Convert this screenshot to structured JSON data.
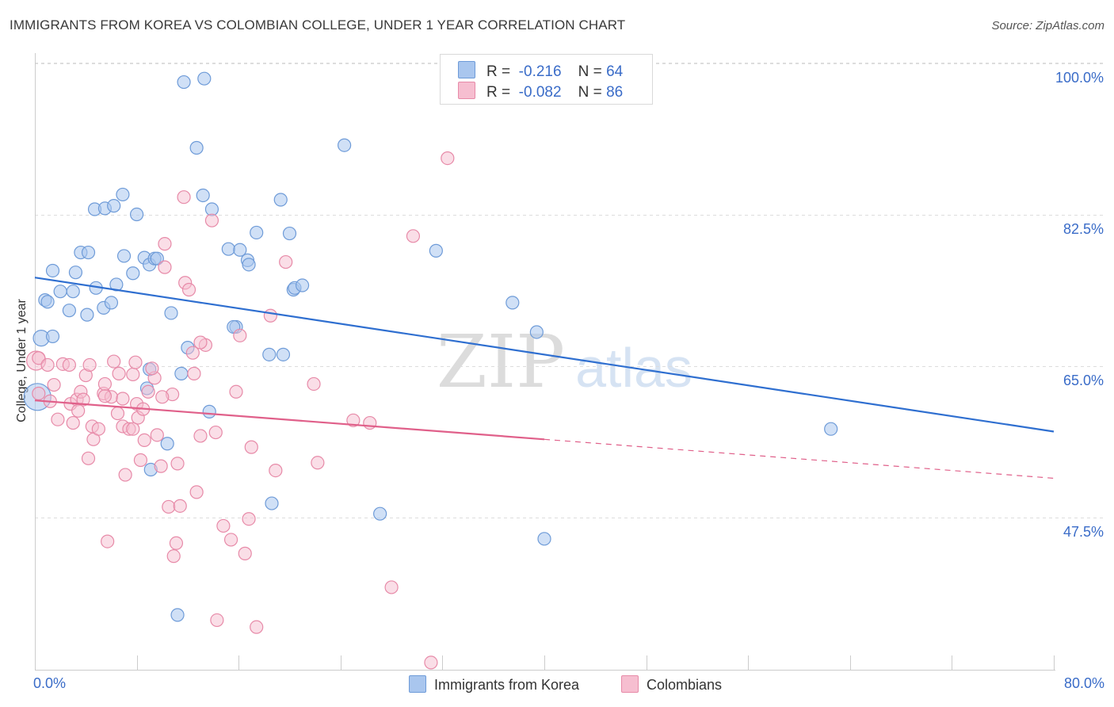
{
  "title": "IMMIGRANTS FROM KOREA VS COLOMBIAN COLLEGE, UNDER 1 YEAR CORRELATION CHART",
  "source": "Source: ZipAtlas.com",
  "watermark": {
    "zip": "ZIP",
    "atlas": "atlas"
  },
  "legend": {
    "rows": [
      {
        "r_label": "R =",
        "r_value": "-0.216",
        "n_label": "N =",
        "n_value": "64"
      },
      {
        "r_label": "R =",
        "r_value": "-0.082",
        "n_label": "N =",
        "n_value": "86"
      }
    ]
  },
  "colors": {
    "korea_fill": "#a9c6ee",
    "korea_stroke": "#6e9bd8",
    "korea_line": "#2f6fd0",
    "colombia_fill": "#f6bed0",
    "colombia_stroke": "#e78aa8",
    "colombia_line": "#e0608a",
    "axis_text": "#3a6cc8",
    "grid": "#dddddd"
  },
  "chart_data": {
    "type": "scatter",
    "title": "IMMIGRANTS FROM KOREA VS COLOMBIAN COLLEGE, UNDER 1 YEAR CORRELATION CHART",
    "xlabel": "",
    "ylabel": "College, Under 1 year",
    "xlim": [
      0,
      80
    ],
    "ylim": [
      32,
      102
    ],
    "x_tick_labels": [
      "0.0%",
      "80.0%"
    ],
    "y_ticks": [
      47.5,
      65.0,
      82.5,
      100.0
    ],
    "y_tick_labels": [
      "47.5%",
      "65.0%",
      "82.5%",
      "100.0%"
    ],
    "grid": true,
    "legend_position": "top-center",
    "series": [
      {
        "name": "Immigrants from Korea",
        "points": [
          [
            0.2,
            63.0
          ],
          [
            0.5,
            69.8
          ],
          [
            0.8,
            74.2
          ],
          [
            1.0,
            74.0
          ],
          [
            1.4,
            70.0
          ],
          [
            1.4,
            77.6
          ],
          [
            2.0,
            75.2
          ],
          [
            2.7,
            73.0
          ],
          [
            3.0,
            75.2
          ],
          [
            3.2,
            77.4
          ],
          [
            3.6,
            79.7
          ],
          [
            4.2,
            79.7
          ],
          [
            4.1,
            72.5
          ],
          [
            4.8,
            75.6
          ],
          [
            4.7,
            84.7
          ],
          [
            5.5,
            84.8
          ],
          [
            6.2,
            85.1
          ],
          [
            5.4,
            73.3
          ],
          [
            6.0,
            73.9
          ],
          [
            6.4,
            76.0
          ],
          [
            7.0,
            79.3
          ],
          [
            6.9,
            86.4
          ],
          [
            7.7,
            77.3
          ],
          [
            8.0,
            84.1
          ],
          [
            8.6,
            79.1
          ],
          [
            9.0,
            78.3
          ],
          [
            9.4,
            79.0
          ],
          [
            9.6,
            79.0
          ],
          [
            9.0,
            66.2
          ],
          [
            8.8,
            64.0
          ],
          [
            10.7,
            72.7
          ],
          [
            11.5,
            65.7
          ],
          [
            12.0,
            68.7
          ],
          [
            11.7,
            99.4
          ],
          [
            12.7,
            91.8
          ],
          [
            13.3,
            99.8
          ],
          [
            13.2,
            86.3
          ],
          [
            13.9,
            84.7
          ],
          [
            13.7,
            61.3
          ],
          [
            10.4,
            57.6
          ],
          [
            9.1,
            54.6
          ],
          [
            11.2,
            37.8
          ],
          [
            15.2,
            80.1
          ],
          [
            15.8,
            71.1
          ],
          [
            15.6,
            71.1
          ],
          [
            16.1,
            80.0
          ],
          [
            16.7,
            78.8
          ],
          [
            16.8,
            78.3
          ],
          [
            17.4,
            82.0
          ],
          [
            18.6,
            50.7
          ],
          [
            18.4,
            67.9
          ],
          [
            19.3,
            85.8
          ],
          [
            19.5,
            67.9
          ],
          [
            20.0,
            81.9
          ],
          [
            20.3,
            75.4
          ],
          [
            20.4,
            75.6
          ],
          [
            21.0,
            75.9
          ],
          [
            24.3,
            92.1
          ],
          [
            27.1,
            49.5
          ],
          [
            31.5,
            79.9
          ],
          [
            37.5,
            73.9
          ],
          [
            39.4,
            70.5
          ],
          [
            40.0,
            46.6
          ],
          [
            62.5,
            59.3
          ]
        ]
      },
      {
        "name": "Colombians",
        "points": [
          [
            0.1,
            67.2
          ],
          [
            0.3,
            67.5
          ],
          [
            0.3,
            63.4
          ],
          [
            1.0,
            66.7
          ],
          [
            1.2,
            62.5
          ],
          [
            1.5,
            64.4
          ],
          [
            1.8,
            60.4
          ],
          [
            2.2,
            66.8
          ],
          [
            2.7,
            66.7
          ],
          [
            2.8,
            62.2
          ],
          [
            3.0,
            60.0
          ],
          [
            3.3,
            62.7
          ],
          [
            3.6,
            63.6
          ],
          [
            3.8,
            62.7
          ],
          [
            4.0,
            65.5
          ],
          [
            4.2,
            55.9
          ],
          [
            4.5,
            59.6
          ],
          [
            4.6,
            58.1
          ],
          [
            5.0,
            59.3
          ],
          [
            5.4,
            63.4
          ],
          [
            5.5,
            64.5
          ],
          [
            5.7,
            46.3
          ],
          [
            6.0,
            63.0
          ],
          [
            6.2,
            67.1
          ],
          [
            6.5,
            61.1
          ],
          [
            6.9,
            59.6
          ],
          [
            6.9,
            62.8
          ],
          [
            7.1,
            54.0
          ],
          [
            7.4,
            59.3
          ],
          [
            7.7,
            65.6
          ],
          [
            7.7,
            59.3
          ],
          [
            7.9,
            67.0
          ],
          [
            8.0,
            62.2
          ],
          [
            8.1,
            60.6
          ],
          [
            8.3,
            55.7
          ],
          [
            8.5,
            61.6
          ],
          [
            8.6,
            58.0
          ],
          [
            8.9,
            63.6
          ],
          [
            9.4,
            65.2
          ],
          [
            9.2,
            66.3
          ],
          [
            9.6,
            58.6
          ],
          [
            9.9,
            55.0
          ],
          [
            10.2,
            78.0
          ],
          [
            10.2,
            80.7
          ],
          [
            10.5,
            50.3
          ],
          [
            10.8,
            63.3
          ],
          [
            10.9,
            44.6
          ],
          [
            11.1,
            46.1
          ],
          [
            11.2,
            55.3
          ],
          [
            11.4,
            50.4
          ],
          [
            11.7,
            86.1
          ],
          [
            11.8,
            76.2
          ],
          [
            12.1,
            75.4
          ],
          [
            12.5,
            65.7
          ],
          [
            12.4,
            68.1
          ],
          [
            12.7,
            52.0
          ],
          [
            13.0,
            58.5
          ],
          [
            13.4,
            69.0
          ],
          [
            13.9,
            83.4
          ],
          [
            14.2,
            58.9
          ],
          [
            14.3,
            37.2
          ],
          [
            14.8,
            48.1
          ],
          [
            15.4,
            46.5
          ],
          [
            15.8,
            63.6
          ],
          [
            16.1,
            70.1
          ],
          [
            16.5,
            44.9
          ],
          [
            16.8,
            48.9
          ],
          [
            17.0,
            57.2
          ],
          [
            17.4,
            36.4
          ],
          [
            18.5,
            72.4
          ],
          [
            18.9,
            54.5
          ],
          [
            19.7,
            78.6
          ],
          [
            21.9,
            64.5
          ],
          [
            22.2,
            55.4
          ],
          [
            25.0,
            60.3
          ],
          [
            26.3,
            60.0
          ],
          [
            28.0,
            41.0
          ],
          [
            29.7,
            81.6
          ],
          [
            31.1,
            32.3
          ],
          [
            32.4,
            90.6
          ],
          [
            5.5,
            63.1
          ],
          [
            6.6,
            65.7
          ],
          [
            3.4,
            61.4
          ],
          [
            4.3,
            66.7
          ],
          [
            13.0,
            69.3
          ],
          [
            10.0,
            63.0
          ]
        ]
      }
    ],
    "trendlines": [
      {
        "series": "Immigrants from Korea",
        "x": [
          0,
          80
        ],
        "y": [
          76.8,
          59.0
        ],
        "style": "solid"
      },
      {
        "series": "Colombians",
        "x": [
          0,
          40
        ],
        "y": [
          62.6,
          58.1
        ],
        "style": "solid"
      },
      {
        "series": "Colombians",
        "x": [
          40,
          80
        ],
        "y": [
          58.1,
          53.6
        ],
        "style": "dashed"
      }
    ]
  }
}
